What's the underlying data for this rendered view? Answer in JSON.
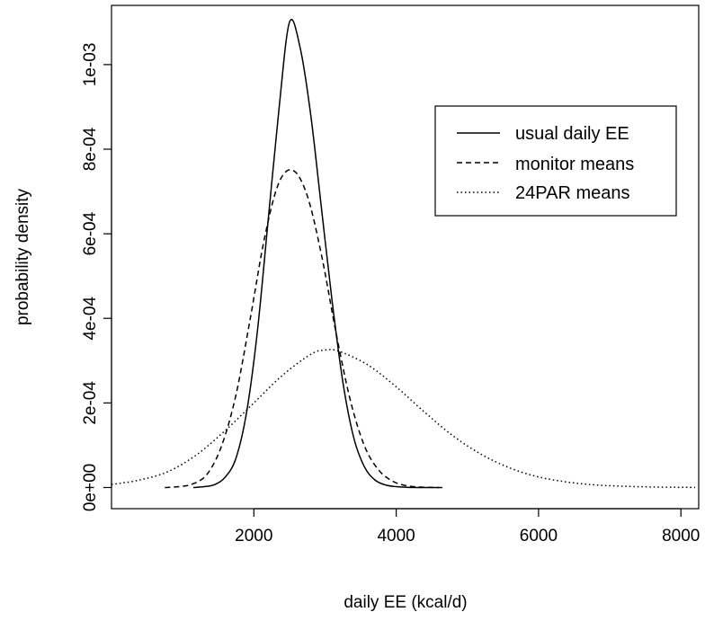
{
  "chart_data": {
    "type": "line",
    "title": "",
    "xlabel": "daily EE (kcal/d)",
    "ylabel": "probability density",
    "xlim": [
      0,
      8250
    ],
    "ylim": [
      -5e-05,
      0.00114
    ],
    "xticks": [
      2000,
      4000,
      6000,
      8000
    ],
    "xtick_labels": [
      "2000",
      "4000",
      "6000",
      "8000"
    ],
    "yticks": [
      0,
      0.0002,
      0.0004,
      0.0006,
      0.0008,
      0.001
    ],
    "ytick_labels": [
      "0e+00",
      "2e-04",
      "4e-04",
      "6e-04",
      "8e-04",
      "1e-03"
    ],
    "grid": false,
    "legend_position": "top-right",
    "series": [
      {
        "name": "usual daily EE",
        "dash": "solid",
        "x": [
          1150,
          1300,
          1450,
          1600,
          1750,
          1900,
          2050,
          2200,
          2350,
          2500,
          2650,
          2800,
          2950,
          3100,
          3250,
          3400,
          3550,
          3700,
          3850,
          4000,
          4150,
          4300,
          4450,
          4600
        ],
        "y": [
          0.0,
          2e-06,
          7e-06,
          2.5e-05,
          7e-05,
          0.00018,
          0.00037,
          0.00063,
          0.00089,
          0.0011,
          0.00104,
          0.00088,
          0.00066,
          0.00044,
          0.00025,
          0.00012,
          5e-05,
          1.8e-05,
          6e-06,
          2e-06,
          5e-07,
          0.0,
          0.0,
          0.0
        ]
      },
      {
        "name": "monitor means",
        "dash": "dashed",
        "x": [
          750,
          950,
          1150,
          1350,
          1550,
          1750,
          1950,
          2150,
          2350,
          2550,
          2750,
          2950,
          3150,
          3350,
          3550,
          3750,
          3950,
          4150,
          4350,
          4550,
          4650
        ],
        "y": [
          0.0,
          2e-06,
          9e-06,
          3.3e-05,
          0.0001,
          0.00022,
          0.0004,
          0.00059,
          0.00072,
          0.00075,
          0.00069,
          0.00055,
          0.00037,
          0.00021,
          0.0001,
          4.2e-05,
          1.5e-05,
          4e-06,
          1e-06,
          0.0,
          0.0
        ]
      },
      {
        "name": "24PAR means",
        "dash": "dotted",
        "x": [
          0,
          400,
          800,
          1200,
          1600,
          2000,
          2400,
          2800,
          3000,
          3200,
          3600,
          4000,
          4400,
          4800,
          5200,
          5600,
          6000,
          6400,
          6800,
          7200,
          7600,
          8000,
          8200
        ],
        "y": [
          7e-06,
          1.8e-05,
          3.8e-05,
          7.8e-05,
          0.000135,
          0.0002,
          0.000265,
          0.000315,
          0.000325,
          0.000322,
          0.00029,
          0.000238,
          0.000178,
          0.000122,
          7.8e-05,
          4.6e-05,
          2.5e-05,
          1.3e-05,
          6e-06,
          3e-06,
          1.2e-06,
          5e-07,
          2e-07
        ]
      }
    ]
  }
}
